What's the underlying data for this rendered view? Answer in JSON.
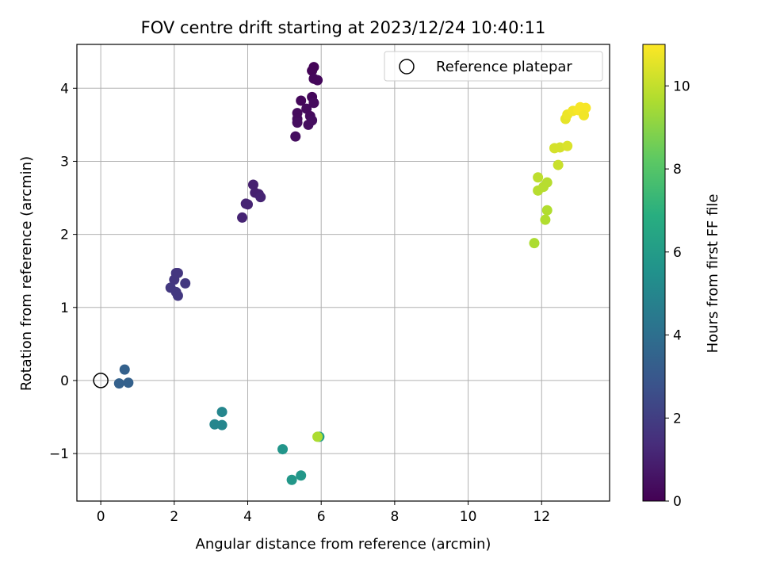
{
  "chart_data": {
    "type": "scatter",
    "title": "FOV centre drift starting at 2023/12/24 10:40:11",
    "xlabel": "Angular distance from reference (arcmin)",
    "ylabel": "Rotation from reference (arcmin)",
    "xlim": [
      -0.65,
      13.85
    ],
    "ylim": [
      -1.65,
      4.6
    ],
    "xticks": [
      0,
      2,
      4,
      6,
      8,
      10,
      12
    ],
    "yticks": [
      -1,
      0,
      1,
      2,
      3,
      4
    ],
    "grid": true,
    "legend": {
      "position": "top-right",
      "entries": [
        "Reference platepar"
      ]
    },
    "reference_point": {
      "label": "Reference platepar",
      "x": 0,
      "y": 0
    },
    "colorbar": {
      "label": "Hours from first FF file",
      "range": [
        0,
        11
      ],
      "ticks": [
        0,
        2,
        4,
        6,
        8,
        10
      ],
      "colormap": "viridis"
    },
    "points": [
      {
        "x": 5.8,
        "y": 4.29,
        "h": 0.1
      },
      {
        "x": 5.75,
        "y": 4.24,
        "h": 0.1
      },
      {
        "x": 5.8,
        "y": 4.13,
        "h": 0.2
      },
      {
        "x": 5.9,
        "y": 4.11,
        "h": 0.2
      },
      {
        "x": 5.75,
        "y": 3.88,
        "h": 0.2
      },
      {
        "x": 5.45,
        "y": 3.83,
        "h": 0.2
      },
      {
        "x": 5.8,
        "y": 3.8,
        "h": 0.3
      },
      {
        "x": 5.6,
        "y": 3.72,
        "h": 0.3
      },
      {
        "x": 5.35,
        "y": 3.66,
        "h": 0.3
      },
      {
        "x": 5.7,
        "y": 3.62,
        "h": 0.3
      },
      {
        "x": 5.35,
        "y": 3.58,
        "h": 0.3
      },
      {
        "x": 5.75,
        "y": 3.56,
        "h": 0.4
      },
      {
        "x": 5.35,
        "y": 3.53,
        "h": 0.4
      },
      {
        "x": 5.65,
        "y": 3.5,
        "h": 0.4
      },
      {
        "x": 5.3,
        "y": 3.34,
        "h": 0.4
      },
      {
        "x": 4.15,
        "y": 2.68,
        "h": 1.0
      },
      {
        "x": 4.2,
        "y": 2.57,
        "h": 1.0
      },
      {
        "x": 4.3,
        "y": 2.55,
        "h": 1.0
      },
      {
        "x": 4.35,
        "y": 2.51,
        "h": 1.1
      },
      {
        "x": 3.95,
        "y": 2.42,
        "h": 1.1
      },
      {
        "x": 4.0,
        "y": 2.41,
        "h": 1.1
      },
      {
        "x": 3.85,
        "y": 2.23,
        "h": 1.1
      },
      {
        "x": 2.05,
        "y": 1.47,
        "h": 1.7
      },
      {
        "x": 2.1,
        "y": 1.47,
        "h": 1.7
      },
      {
        "x": 2.0,
        "y": 1.38,
        "h": 1.7
      },
      {
        "x": 2.3,
        "y": 1.33,
        "h": 1.8
      },
      {
        "x": 1.9,
        "y": 1.27,
        "h": 1.8
      },
      {
        "x": 2.05,
        "y": 1.21,
        "h": 1.8
      },
      {
        "x": 2.1,
        "y": 1.16,
        "h": 1.8
      },
      {
        "x": 0.65,
        "y": 0.15,
        "h": 3.4
      },
      {
        "x": 0.5,
        "y": -0.04,
        "h": 3.4
      },
      {
        "x": 0.75,
        "y": -0.03,
        "h": 3.4
      },
      {
        "x": 3.3,
        "y": -0.43,
        "h": 5.0
      },
      {
        "x": 3.1,
        "y": -0.6,
        "h": 5.0
      },
      {
        "x": 3.3,
        "y": -0.61,
        "h": 5.0
      },
      {
        "x": 4.95,
        "y": -0.94,
        "h": 5.7
      },
      {
        "x": 5.95,
        "y": -0.77,
        "h": 6.2
      },
      {
        "x": 5.2,
        "y": -1.36,
        "h": 5.8
      },
      {
        "x": 5.45,
        "y": -1.3,
        "h": 5.8
      },
      {
        "x": 5.9,
        "y": -0.77,
        "h": 9.6
      },
      {
        "x": 11.8,
        "y": 1.88,
        "h": 9.6
      },
      {
        "x": 12.1,
        "y": 2.2,
        "h": 9.7
      },
      {
        "x": 12.15,
        "y": 2.33,
        "h": 9.7
      },
      {
        "x": 11.9,
        "y": 2.6,
        "h": 9.8
      },
      {
        "x": 12.05,
        "y": 2.65,
        "h": 9.8
      },
      {
        "x": 12.15,
        "y": 2.71,
        "h": 9.8
      },
      {
        "x": 11.9,
        "y": 2.78,
        "h": 9.9
      },
      {
        "x": 12.45,
        "y": 2.95,
        "h": 10.1
      },
      {
        "x": 12.35,
        "y": 3.18,
        "h": 10.3
      },
      {
        "x": 12.5,
        "y": 3.19,
        "h": 10.3
      },
      {
        "x": 12.7,
        "y": 3.21,
        "h": 10.4
      },
      {
        "x": 12.65,
        "y": 3.58,
        "h": 10.6
      },
      {
        "x": 12.7,
        "y": 3.64,
        "h": 10.7
      },
      {
        "x": 12.85,
        "y": 3.69,
        "h": 10.8
      },
      {
        "x": 13.05,
        "y": 3.74,
        "h": 10.9
      },
      {
        "x": 13.2,
        "y": 3.73,
        "h": 10.9
      },
      {
        "x": 13.0,
        "y": 3.7,
        "h": 10.9
      },
      {
        "x": 13.15,
        "y": 3.63,
        "h": 10.8
      }
    ]
  }
}
